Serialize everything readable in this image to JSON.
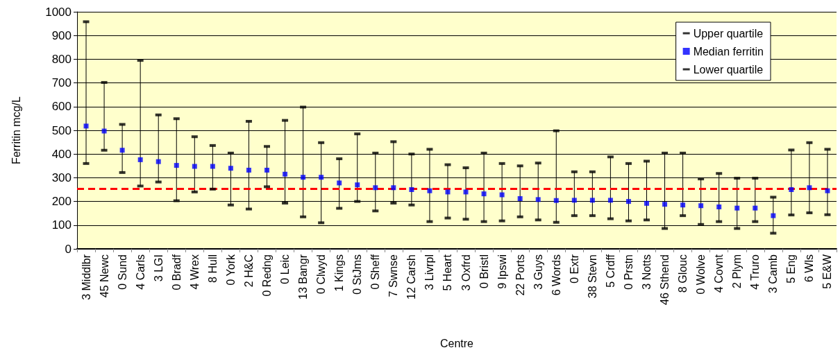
{
  "chart_data": {
    "type": "scatter",
    "xlabel": "Centre",
    "ylabel": "Ferritin mcg/L",
    "categories": [
      "3 Middlbr",
      "45 Newc",
      "0 Sund",
      "4 Carls",
      "3 LGI",
      "0 Bradf",
      "4 Wrex",
      "8 Hull",
      "0 York",
      "2 H&C",
      "0 Redng",
      "0 Leic",
      "13 Bangr",
      "0 Clwyd",
      "1 Kings",
      "0 StJms",
      "0 Sheff",
      "7 Swnse",
      "12 Carsh",
      "3 Livrpl",
      "5 Heart",
      "3 Oxfrd",
      "0 Bristl",
      "9 Ipswi",
      "22 Ports",
      "3 Guys",
      "6 Words",
      "0 Extr",
      "38 Stevn",
      "5 Crdff",
      "0 Prstn",
      "3 Notts",
      "46 Sthend",
      "8 Glouc",
      "0 Wolve",
      "4 Covnt",
      "2 Plym",
      "4 Truro",
      "3 Camb",
      "5 Eng",
      "6 Wls",
      "5 E&W"
    ],
    "series": [
      {
        "name": "Upper quartile",
        "color": "#000000",
        "values": [
          958,
          702,
          525,
          795,
          565,
          549,
          473,
          436,
          404,
          538,
          432,
          542,
          598,
          448,
          380,
          485,
          404,
          452,
          400,
          420,
          355,
          342,
          404,
          360,
          350,
          362,
          498,
          325,
          325,
          388,
          360,
          370,
          404,
          404,
          295,
          318,
          298,
          298,
          218,
          417,
          448,
          420
        ]
      },
      {
        "name": "Median ferritin",
        "color": "#0000ff",
        "marker": "square",
        "values": [
          518,
          497,
          416,
          376,
          368,
          352,
          348,
          348,
          340,
          332,
          332,
          315,
          302,
          302,
          278,
          270,
          258,
          258,
          250,
          245,
          240,
          240,
          232,
          228,
          212,
          208,
          204,
          205,
          205,
          205,
          200,
          192,
          188,
          185,
          182,
          177,
          172,
          172,
          140,
          250,
          258,
          245
        ]
      },
      {
        "name": "Lower quartile",
        "color": "#000000",
        "values": [
          360,
          416,
          322,
          265,
          282,
          203,
          240,
          252,
          185,
          168,
          262,
          193,
          135,
          110,
          171,
          200,
          160,
          193,
          185,
          115,
          130,
          125,
          115,
          118,
          135,
          122,
          112,
          140,
          140,
          127,
          118,
          122,
          86,
          140,
          103,
          115,
          86,
          115,
          66,
          143,
          152,
          144
        ]
      }
    ],
    "ylim": [
      0,
      1000
    ],
    "yticks": [
      0,
      100,
      200,
      300,
      400,
      500,
      600,
      700,
      800,
      900,
      1000
    ],
    "ref_lines": [
      {
        "axis": "y",
        "value": 253,
        "color": "#ff0000",
        "line_style": "dashed"
      }
    ],
    "grid": "y",
    "legend": "top right"
  }
}
